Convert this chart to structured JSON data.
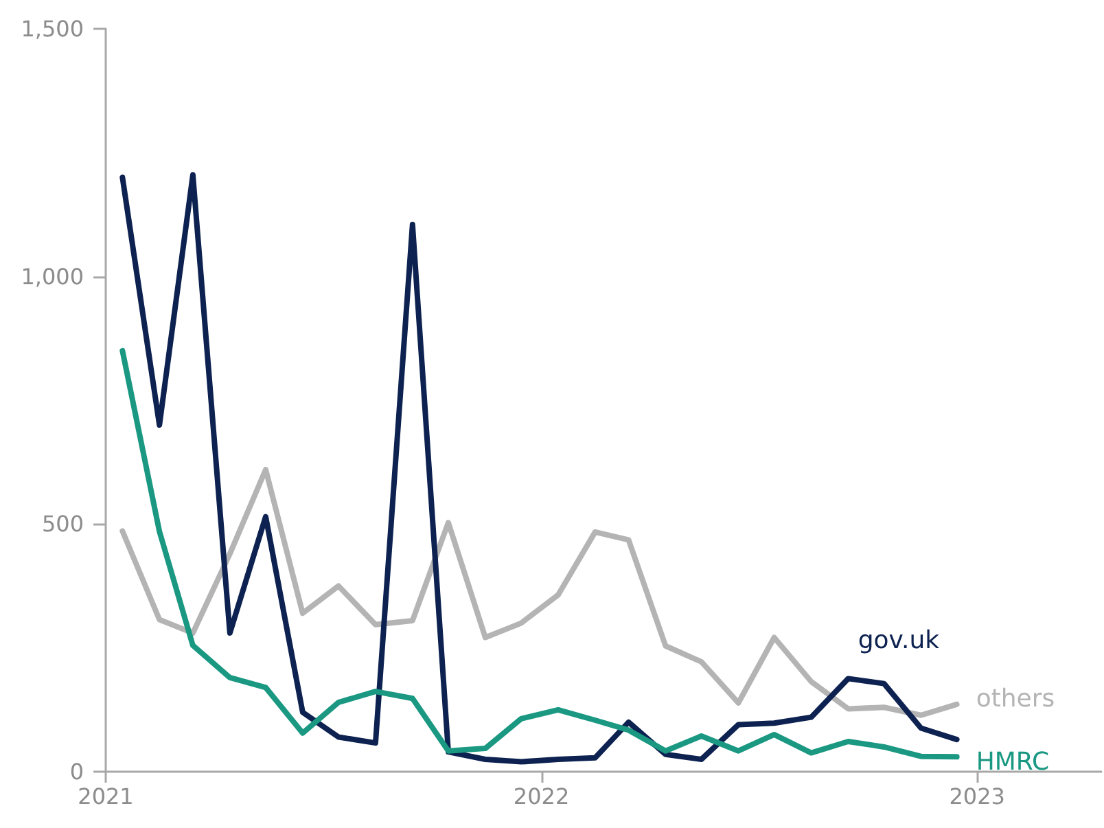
{
  "chart_data": {
    "type": "line",
    "x": [
      "2021-01-15",
      "2021-02-15",
      "2021-03-15",
      "2021-04-15",
      "2021-05-15",
      "2021-06-15",
      "2021-07-15",
      "2021-08-15",
      "2021-09-15",
      "2021-10-15",
      "2021-11-15",
      "2021-12-15",
      "2022-01-15",
      "2022-02-15",
      "2022-03-15",
      "2022-04-15",
      "2022-05-15",
      "2022-06-15",
      "2022-07-15",
      "2022-08-15",
      "2022-09-15",
      "2022-10-15",
      "2022-11-15",
      "2022-12-15"
    ],
    "series": [
      {
        "name": "others",
        "color": "#b4b4b4",
        "values": [
          486,
          307,
          280,
          440,
          610,
          320,
          375,
          297,
          305,
          503,
          271,
          300,
          357,
          484,
          468,
          254,
          222,
          139,
          271,
          182,
          127,
          130,
          114,
          136
        ]
      },
      {
        "name": "gov.uk",
        "color": "#0d2250",
        "values": [
          1200,
          700,
          1205,
          280,
          515,
          120,
          70,
          58,
          1105,
          40,
          25,
          20,
          25,
          28,
          100,
          35,
          25,
          95,
          98,
          110,
          188,
          178,
          88,
          65
        ]
      },
      {
        "name": "HMRC",
        "color": "#1a9882",
        "values": [
          850,
          485,
          255,
          190,
          170,
          78,
          140,
          162,
          148,
          42,
          47,
          107,
          125,
          104,
          84,
          42,
          72,
          42,
          75,
          38,
          61,
          50,
          31,
          30
        ]
      }
    ],
    "xlim": [
      "2021",
      "2023-04-15"
    ],
    "xticks": [
      "2021",
      "2022",
      "2023"
    ],
    "ylim": [
      0,
      1500
    ],
    "yticks": [
      0,
      {
        "value": 500,
        "label": "500"
      },
      {
        "value": 1000,
        "label": "1,000"
      },
      {
        "value": 1500,
        "label": "1,500"
      }
    ],
    "grid": false,
    "legend": false,
    "marker": "none",
    "line_style": "solid"
  }
}
